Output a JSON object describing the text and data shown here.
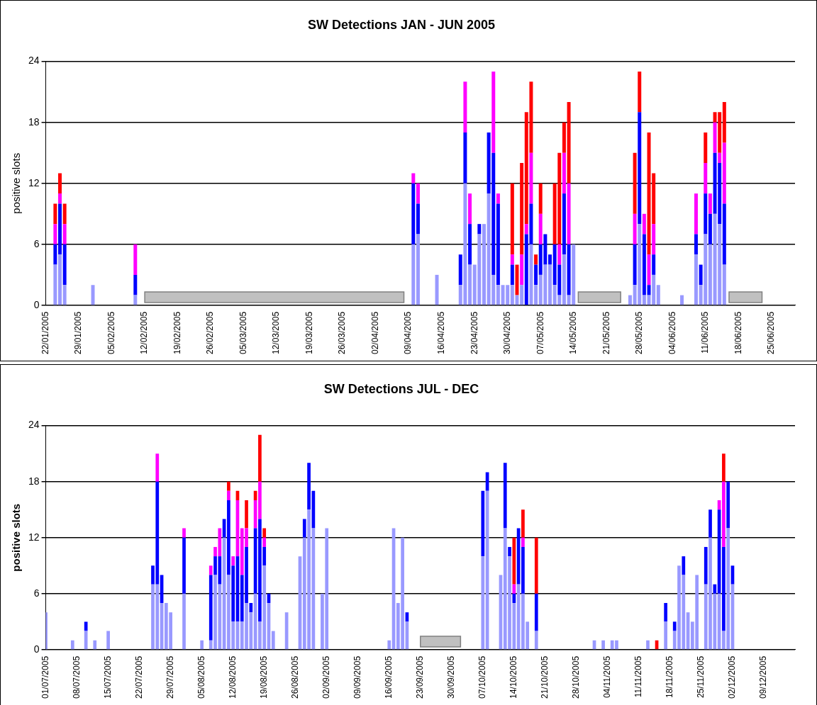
{
  "chart_data": [
    {
      "type": "bar",
      "title": "SW Detections JAN - JUN 2005",
      "ylabel": "positive slots",
      "stacked": true,
      "grid": "y",
      "xlim": [
        "2005-01-22",
        "2005-06-30"
      ],
      "ylim": [
        0,
        24
      ],
      "yticks": [
        0,
        6,
        12,
        18,
        24
      ],
      "xticks": [
        {
          "value": "2005-01-22",
          "label": "22/01/2005"
        },
        {
          "value": "2005-01-29",
          "label": "29/01/2005"
        },
        {
          "value": "2005-02-05",
          "label": "05/02/2005"
        },
        {
          "value": "2005-02-12",
          "label": "12/02/2005"
        },
        {
          "value": "2005-02-19",
          "label": "19/02/2005"
        },
        {
          "value": "2005-02-26",
          "label": "26/02/2005"
        },
        {
          "value": "2005-03-05",
          "label": "05/03/2005"
        },
        {
          "value": "2005-03-12",
          "label": "12/03/2005"
        },
        {
          "value": "2005-03-19",
          "label": "19/03/2005"
        },
        {
          "value": "2005-03-26",
          "label": "26/03/2005"
        },
        {
          "value": "2005-04-02",
          "label": "02/04/2005"
        },
        {
          "value": "2005-04-09",
          "label": "09/04/2005"
        },
        {
          "value": "2005-04-16",
          "label": "16/04/2005"
        },
        {
          "value": "2005-04-23",
          "label": "23/04/2005"
        },
        {
          "value": "2005-04-30",
          "label": "30/04/2005"
        },
        {
          "value": "2005-05-07",
          "label": "07/05/2005"
        },
        {
          "value": "2005-05-14",
          "label": "14/05/2005"
        },
        {
          "value": "2005-05-21",
          "label": "21/05/2005"
        },
        {
          "value": "2005-05-28",
          "label": "28/05/2005"
        },
        {
          "value": "2005-06-04",
          "label": "04/06/2005"
        },
        {
          "value": "2005-06-11",
          "label": "11/06/2005"
        },
        {
          "value": "2005-06-18",
          "label": "18/06/2005"
        },
        {
          "value": "2005-06-25",
          "label": "25/06/2005"
        }
      ],
      "x": [
        "2005-01-24",
        "2005-01-25",
        "2005-01-26",
        "2005-02-01",
        "2005-02-10",
        "2005-04-10",
        "2005-04-11",
        "2005-04-15",
        "2005-04-20",
        "2005-04-21",
        "2005-04-22",
        "2005-04-23",
        "2005-04-24",
        "2005-04-25",
        "2005-04-26",
        "2005-04-27",
        "2005-04-28",
        "2005-04-29",
        "2005-04-30",
        "2005-05-01",
        "2005-05-02",
        "2005-05-03",
        "2005-05-04",
        "2005-05-05",
        "2005-05-06",
        "2005-05-07",
        "2005-05-08",
        "2005-05-09",
        "2005-05-10",
        "2005-05-11",
        "2005-05-12",
        "2005-05-13",
        "2005-05-14",
        "2005-05-26",
        "2005-05-27",
        "2005-05-28",
        "2005-05-29",
        "2005-05-30",
        "2005-05-31",
        "2005-06-01",
        "2005-06-06",
        "2005-06-09",
        "2005-06-10",
        "2005-06-11",
        "2005-06-12",
        "2005-06-13",
        "2005-06-14",
        "2005-06-15"
      ],
      "series": [
        {
          "color": "#9999ff",
          "values": [
            4,
            5,
            2,
            2,
            1,
            6,
            7,
            3,
            2,
            12,
            4,
            4,
            7,
            8,
            11,
            3,
            2,
            2,
            2,
            2,
            1,
            2,
            null,
            6,
            2,
            3,
            4,
            4,
            2,
            1,
            5,
            1,
            6,
            1,
            2,
            8,
            1,
            1,
            3,
            2,
            1,
            5,
            2,
            7,
            6,
            9,
            8,
            4
          ]
        },
        {
          "color": "#0000ff",
          "values": [
            2,
            5,
            4,
            null,
            2,
            6,
            3,
            null,
            3,
            5,
            4,
            null,
            1,
            null,
            6,
            12,
            8,
            null,
            null,
            2,
            null,
            null,
            7,
            4,
            2,
            3,
            3,
            1,
            4,
            3,
            6,
            5,
            null,
            null,
            4,
            11,
            6,
            1,
            2,
            null,
            null,
            2,
            2,
            4,
            3,
            6,
            6,
            6
          ]
        },
        {
          "color": "#ff00ff",
          "values": [
            2,
            1,
            2,
            null,
            3,
            1,
            2,
            null,
            null,
            5,
            3,
            null,
            null,
            null,
            null,
            8,
            1,
            null,
            null,
            1,
            null,
            3,
            1,
            5,
            null,
            3,
            null,
            null,
            null,
            2,
            4,
            6,
            null,
            null,
            3,
            null,
            2,
            3,
            3,
            null,
            null,
            4,
            null,
            3,
            2,
            3,
            1,
            6
          ]
        },
        {
          "color": "#ff0000",
          "values": [
            2,
            2,
            2,
            null,
            null,
            null,
            null,
            null,
            null,
            null,
            null,
            null,
            null,
            null,
            null,
            null,
            null,
            null,
            null,
            7,
            3,
            9,
            11,
            7,
            1,
            3,
            null,
            null,
            6,
            9,
            3,
            8,
            null,
            null,
            6,
            4,
            null,
            12,
            5,
            null,
            null,
            null,
            null,
            3,
            null,
            1,
            4,
            4
          ]
        }
      ],
      "bands": [
        {
          "axis": "x",
          "from": "2005-02-12",
          "to": "2005-04-08",
          "color": "#c0c0c0"
        },
        {
          "axis": "x",
          "from": "2005-05-15",
          "to": "2005-05-24",
          "color": "#c0c0c0"
        },
        {
          "axis": "x",
          "from": "2005-06-16",
          "to": "2005-06-23",
          "color": "#c0c0c0"
        }
      ]
    },
    {
      "type": "bar",
      "title": "SW Detections JUL - DEC",
      "ylabel": "positive slots",
      "stacked": true,
      "grid": "y",
      "xlim": [
        "2005-07-01",
        "2005-12-16"
      ],
      "ylim": [
        0,
        24
      ],
      "yticks": [
        0,
        6,
        12,
        18,
        24
      ],
      "xticks": [
        {
          "value": "2005-07-01",
          "label": "01/07/2005"
        },
        {
          "value": "2005-07-08",
          "label": "08/07/2005"
        },
        {
          "value": "2005-07-15",
          "label": "15/07/2005"
        },
        {
          "value": "2005-07-22",
          "label": "22/07/2005"
        },
        {
          "value": "2005-07-29",
          "label": "29/07/2005"
        },
        {
          "value": "2005-08-05",
          "label": "05/08/2005"
        },
        {
          "value": "2005-08-12",
          "label": "12/08/2005"
        },
        {
          "value": "2005-08-19",
          "label": "19/08/2005"
        },
        {
          "value": "2005-08-26",
          "label": "26/08/2005"
        },
        {
          "value": "2005-09-02",
          "label": "02/09/2005"
        },
        {
          "value": "2005-09-09",
          "label": "09/09/2005"
        },
        {
          "value": "2005-09-16",
          "label": "16/09/2005"
        },
        {
          "value": "2005-09-23",
          "label": "23/09/2005"
        },
        {
          "value": "2005-09-30",
          "label": "30/09/2005"
        },
        {
          "value": "2005-10-07",
          "label": "07/10/2005"
        },
        {
          "value": "2005-10-14",
          "label": "14/10/2005"
        },
        {
          "value": "2005-10-21",
          "label": "21/10/2005"
        },
        {
          "value": "2005-10-28",
          "label": "28/10/2005"
        },
        {
          "value": "2005-11-04",
          "label": "04/11/2005"
        },
        {
          "value": "2005-11-11",
          "label": "11/11/2005"
        },
        {
          "value": "2005-11-18",
          "label": "18/11/2005"
        },
        {
          "value": "2005-11-25",
          "label": "25/11/2005"
        },
        {
          "value": "2005-12-02",
          "label": "02/12/2005"
        },
        {
          "value": "2005-12-09",
          "label": "09/12/2005"
        }
      ],
      "x": [
        "2005-07-01",
        "2005-07-07",
        "2005-07-10",
        "2005-07-12",
        "2005-07-15",
        "2005-07-25",
        "2005-07-26",
        "2005-07-27",
        "2005-07-28",
        "2005-07-29",
        "2005-08-01",
        "2005-08-05",
        "2005-08-07",
        "2005-08-08",
        "2005-08-09",
        "2005-08-10",
        "2005-08-11",
        "2005-08-12",
        "2005-08-13",
        "2005-08-14",
        "2005-08-15",
        "2005-08-16",
        "2005-08-17",
        "2005-08-18",
        "2005-08-19",
        "2005-08-20",
        "2005-08-21",
        "2005-08-24",
        "2005-08-27",
        "2005-08-28",
        "2005-08-29",
        "2005-08-30",
        "2005-09-01",
        "2005-09-02",
        "2005-09-16",
        "2005-09-17",
        "2005-09-18",
        "2005-09-19",
        "2005-09-20",
        "2005-10-07",
        "2005-10-08",
        "2005-10-11",
        "2005-10-12",
        "2005-10-13",
        "2005-10-14",
        "2005-10-15",
        "2005-10-16",
        "2005-10-17",
        "2005-10-19",
        "2005-11-01",
        "2005-11-03",
        "2005-11-05",
        "2005-11-06",
        "2005-11-13",
        "2005-11-15",
        "2005-11-17",
        "2005-11-19",
        "2005-11-20",
        "2005-11-21",
        "2005-11-22",
        "2005-11-23",
        "2005-11-24",
        "2005-11-26",
        "2005-11-27",
        "2005-11-28",
        "2005-11-29",
        "2005-11-30",
        "2005-12-01",
        "2005-12-02"
      ],
      "series": [
        {
          "color": "#9999ff",
          "values": [
            4,
            1,
            2,
            1,
            2,
            7,
            7,
            5,
            5,
            4,
            6,
            1,
            1,
            8,
            7,
            12,
            8,
            3,
            3,
            3,
            5,
            4,
            6,
            3,
            9,
            5,
            2,
            4,
            10,
            12,
            15,
            13,
            6,
            13,
            1,
            13,
            5,
            12,
            3,
            10,
            17,
            8,
            13,
            10,
            5,
            7,
            6,
            3,
            2,
            1,
            1,
            1,
            1,
            1,
            null,
            3,
            2,
            9,
            8,
            4,
            3,
            8,
            7,
            12,
            6,
            6,
            2,
            13,
            7
          ]
        },
        {
          "color": "#0000ff",
          "values": [
            null,
            null,
            1,
            null,
            null,
            2,
            11,
            3,
            null,
            null,
            6,
            null,
            7,
            2,
            3,
            2,
            8,
            6,
            7,
            5,
            6,
            1,
            7,
            11,
            2,
            1,
            null,
            null,
            null,
            2,
            5,
            4,
            null,
            null,
            null,
            null,
            null,
            null,
            1,
            7,
            2,
            null,
            7,
            1,
            1,
            6,
            5,
            null,
            4,
            null,
            null,
            null,
            null,
            null,
            null,
            2,
            1,
            null,
            2,
            null,
            null,
            null,
            4,
            3,
            1,
            9,
            9,
            5,
            2
          ]
        },
        {
          "color": "#ff00ff",
          "values": [
            null,
            null,
            null,
            null,
            null,
            null,
            3,
            null,
            null,
            null,
            1,
            null,
            1,
            1,
            3,
            null,
            1,
            1,
            6,
            5,
            2,
            null,
            3,
            4,
            1,
            null,
            null,
            null,
            null,
            null,
            null,
            null,
            null,
            null,
            null,
            null,
            null,
            null,
            null,
            null,
            null,
            null,
            null,
            null,
            1,
            null,
            1,
            null,
            null,
            null,
            null,
            null,
            null,
            null,
            null,
            null,
            null,
            null,
            null,
            null,
            null,
            null,
            null,
            null,
            null,
            1,
            7,
            null,
            null
          ]
        },
        {
          "color": "#ff0000",
          "values": [
            null,
            null,
            null,
            null,
            null,
            null,
            null,
            null,
            null,
            null,
            null,
            null,
            null,
            null,
            null,
            null,
            1,
            null,
            1,
            null,
            3,
            null,
            1,
            5,
            1,
            null,
            null,
            null,
            null,
            null,
            null,
            null,
            null,
            null,
            null,
            null,
            null,
            null,
            null,
            null,
            null,
            null,
            null,
            null,
            5,
            null,
            3,
            null,
            6,
            null,
            null,
            null,
            null,
            null,
            1,
            null,
            null,
            null,
            null,
            null,
            null,
            null,
            null,
            null,
            null,
            null,
            3,
            null,
            null
          ]
        }
      ],
      "bands": [
        {
          "axis": "x",
          "from": "2005-09-23",
          "to": "2005-10-02",
          "color": "#c0c0c0"
        }
      ]
    }
  ]
}
